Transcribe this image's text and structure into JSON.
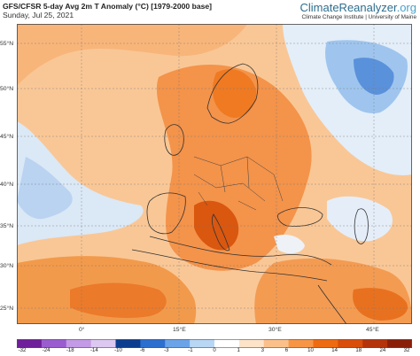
{
  "header": {
    "title": "GFS/CFSR 5-day Avg 2m T Anomaly (°C) [1979-2000 base]",
    "date": "Sunday, Jul 25, 2021",
    "brand_main": "ClimateReanalyzer",
    "brand_tld": ".org",
    "brand_sub": "Climate Change Institute | University of Maine"
  },
  "axes": {
    "lat_labels": [
      "55°N",
      "50°N",
      "45°N",
      "40°N",
      "35°N",
      "30°N",
      "25°N"
    ],
    "lon_labels": [
      "0°",
      "15°E",
      "30°E",
      "45°E"
    ]
  },
  "colorbar": {
    "ticks": [
      "-32",
      "-24",
      "-18",
      "-14",
      "-10",
      "-6",
      "-3",
      "-1",
      "0",
      "1",
      "3",
      "6",
      "10",
      "14",
      "18",
      "24",
      "32"
    ],
    "colors": [
      "#6e1f9a",
      "#9b5ccf",
      "#c39ae6",
      "#dcc8f1",
      "#0a3d8f",
      "#2c6fcf",
      "#6aa3e8",
      "#b8d7f5",
      "#ffffff",
      "#fde3c8",
      "#fbc08a",
      "#f79546",
      "#ee6b12",
      "#d94e0a",
      "#b4330a",
      "#8a1f08"
    ]
  },
  "map_colors": {
    "warm_light": "#fbc99a",
    "warm_mid": "#f7a055",
    "warm_strong": "#ef7a22",
    "hot": "#d9530c",
    "cool_light": "#d8e8f8",
    "cool_mid": "#8fbbe9",
    "cool_strong": "#3f79cf",
    "neutral": "#f4f1ee",
    "border": "#333333"
  }
}
